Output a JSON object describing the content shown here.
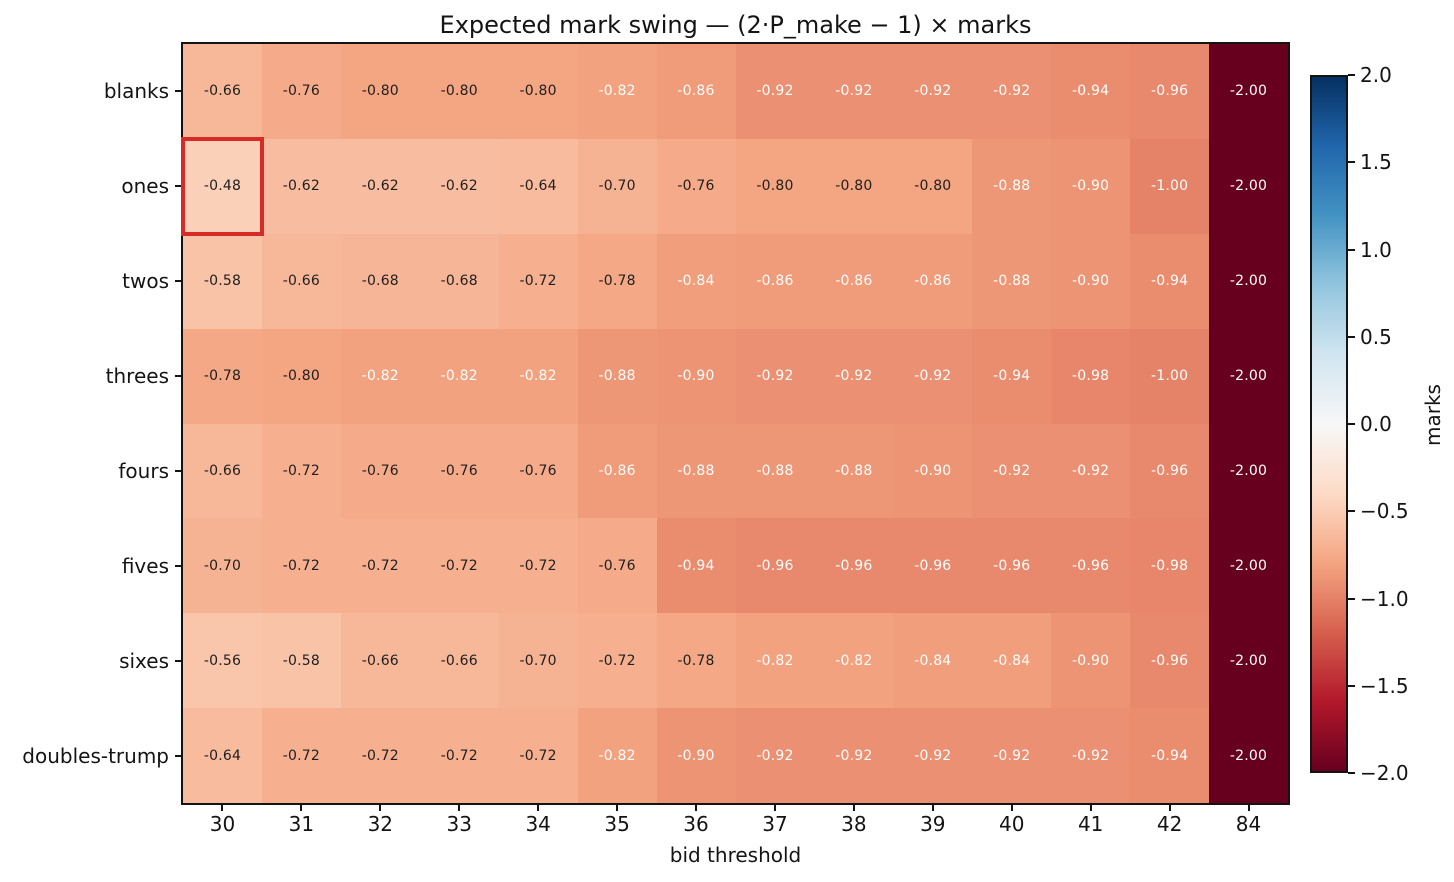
{
  "figure": {
    "title": "Expected mark swing — (2·P_make − 1) × marks"
  },
  "chart_data": {
    "type": "heatmap",
    "title": "Expected mark swing — (2·P_make − 1) × marks",
    "xlabel": "bid threshold",
    "ylabel": "",
    "x_categories": [
      "30",
      "31",
      "32",
      "33",
      "34",
      "35",
      "36",
      "37",
      "38",
      "39",
      "40",
      "41",
      "42",
      "84"
    ],
    "y_categories": [
      "blanks",
      "ones",
      "twos",
      "threes",
      "fours",
      "fives",
      "sixes",
      "doubles-trump"
    ],
    "matrix": [
      [
        -0.66,
        -0.76,
        -0.8,
        -0.8,
        -0.8,
        -0.82,
        -0.86,
        -0.92,
        -0.92,
        -0.92,
        -0.92,
        -0.94,
        -0.96,
        -2.0
      ],
      [
        -0.48,
        -0.62,
        -0.62,
        -0.62,
        -0.64,
        -0.7,
        -0.76,
        -0.8,
        -0.8,
        -0.8,
        -0.88,
        -0.9,
        -1.0,
        -2.0
      ],
      [
        -0.58,
        -0.66,
        -0.68,
        -0.68,
        -0.72,
        -0.78,
        -0.84,
        -0.86,
        -0.86,
        -0.86,
        -0.88,
        -0.9,
        -0.94,
        -2.0
      ],
      [
        -0.78,
        -0.8,
        -0.82,
        -0.82,
        -0.82,
        -0.88,
        -0.9,
        -0.92,
        -0.92,
        -0.92,
        -0.94,
        -0.98,
        -1.0,
        -2.0
      ],
      [
        -0.66,
        -0.72,
        -0.76,
        -0.76,
        -0.76,
        -0.86,
        -0.88,
        -0.88,
        -0.88,
        -0.9,
        -0.92,
        -0.92,
        -0.96,
        -2.0
      ],
      [
        -0.7,
        -0.72,
        -0.72,
        -0.72,
        -0.72,
        -0.76,
        -0.94,
        -0.96,
        -0.96,
        -0.96,
        -0.96,
        -0.96,
        -0.98,
        -2.0
      ],
      [
        -0.56,
        -0.58,
        -0.66,
        -0.66,
        -0.7,
        -0.72,
        -0.78,
        -0.82,
        -0.82,
        -0.84,
        -0.84,
        -0.9,
        -0.96,
        -2.0
      ],
      [
        -0.64,
        -0.72,
        -0.72,
        -0.72,
        -0.72,
        -0.82,
        -0.9,
        -0.92,
        -0.92,
        -0.92,
        -0.92,
        -0.92,
        -0.94,
        -2.0
      ]
    ],
    "value_decimals": 2,
    "vmin": -2.0,
    "vmax": 2.0,
    "colormap": "RdBu",
    "colormap_anchors": [
      "#67001f",
      "#b2182b",
      "#d6604d",
      "#f4a582",
      "#fddbc7",
      "#f7f7f7",
      "#d1e5f0",
      "#92c5de",
      "#4393c3",
      "#2166ac",
      "#053061"
    ],
    "white_text_below": -0.81,
    "grid": false,
    "legend_position": "colorbar-right",
    "colorbar": {
      "label": "marks",
      "tick_labels": [
        "2.0",
        "1.5",
        "1.0",
        "0.5",
        "0.0",
        "−0.5",
        "−1.0",
        "−1.5",
        "−2.0"
      ],
      "tick_values": [
        2.0,
        1.5,
        1.0,
        0.5,
        0.0,
        -0.5,
        -1.0,
        -1.5,
        -2.0
      ]
    },
    "highlight_cell": {
      "row": "ones",
      "column": "30",
      "row_index": 1,
      "col_index": 0,
      "value": -0.48,
      "color": "#d62b27"
    }
  },
  "colors": {
    "background": "#ffffff",
    "axis": "#141414",
    "annotation_dark": "#1f1f1f",
    "annotation_light": "#ffffff",
    "highlight": "#d62b27"
  }
}
